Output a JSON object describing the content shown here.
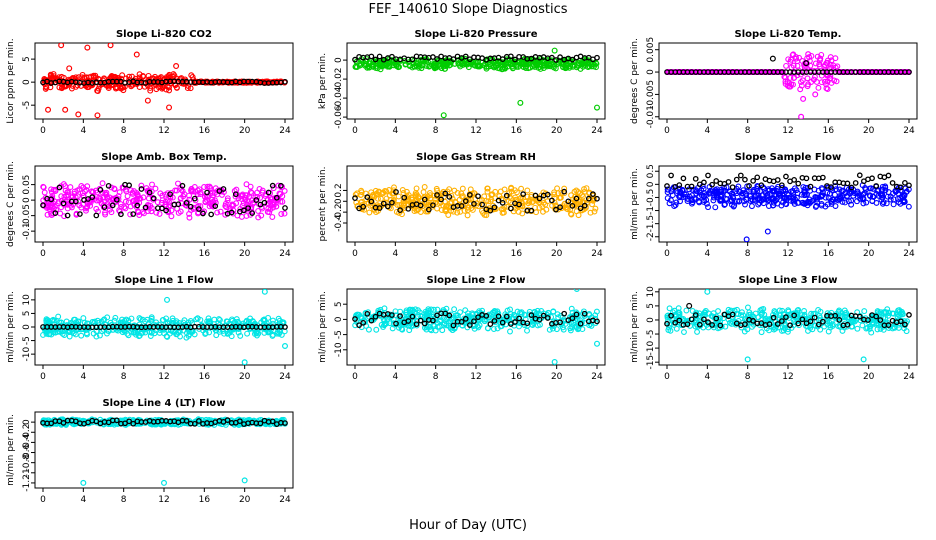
{
  "figure": {
    "title": "FEF_140610  Slope Diagnostics",
    "xlabel": "Hour of Day (UTC)"
  },
  "chart_data": [
    {
      "type": "scatter",
      "title": "Slope Li-820 CO2",
      "ylabel": "Licor ppm per min.",
      "xlim": [
        0,
        24
      ],
      "xticks": [
        0,
        4,
        8,
        12,
        16,
        20,
        24
      ],
      "ylim": [
        -8,
        8.5
      ],
      "yticks": [
        -5,
        0,
        5
      ],
      "series": [
        {
          "color": "#ff0000",
          "spread": 2.0,
          "outliers": [
            [
              0.5,
              -6
            ],
            [
              1.8,
              8
            ],
            [
              2.2,
              -6
            ],
            [
              2.6,
              3
            ],
            [
              3.5,
              -7
            ],
            [
              4.4,
              7.5
            ],
            [
              5.4,
              -7.2
            ],
            [
              6.7,
              8
            ],
            [
              9.3,
              6
            ],
            [
              10.4,
              -4
            ],
            [
              12.5,
              -5.5
            ],
            [
              13.2,
              3.5
            ]
          ],
          "t_range": [
            0,
            15
          ]
        },
        {
          "color": "#000000",
          "spread": 0.2
        }
      ]
    },
    {
      "type": "scatter",
      "title": "Slope Li-820 Pressure",
      "ylabel": "kPa per min.",
      "xlim": [
        0,
        24
      ],
      "xticks": [
        0,
        4,
        8,
        12,
        16,
        20,
        24
      ],
      "ylim": [
        -0.062,
        0.018
      ],
      "yticks": [
        -0.06,
        -0.04,
        -0.02,
        0.0
      ],
      "series": [
        {
          "color": "#00cc00",
          "spread": 0.006,
          "center": -0.004,
          "outliers": [
            [
              8.8,
              -0.058
            ],
            [
              16.4,
              -0.045
            ],
            [
              19.8,
              0.01
            ],
            [
              24.0,
              -0.05
            ]
          ]
        },
        {
          "color": "#000000",
          "spread": 0.002,
          "center": 0.002
        }
      ]
    },
    {
      "type": "scatter",
      "title": "Slope Li-820 Temp.",
      "ylabel": "degrees C per min.",
      "xlim": [
        0,
        24
      ],
      "xticks": [
        0,
        4,
        8,
        12,
        16,
        20,
        24
      ],
      "ylim": [
        -0.0105,
        0.0065
      ],
      "yticks": [
        -0.01,
        -0.005,
        0.0,
        0.005
      ],
      "series": [
        {
          "color": "#ff00ff",
          "spread": 0.0,
          "outliers": [
            [
              12.8,
              0.003
            ],
            [
              13.5,
              -0.006
            ],
            [
              14.0,
              0.004
            ],
            [
              14.7,
              -0.005
            ],
            [
              15.2,
              0.003
            ],
            [
              13.3,
              -0.01
            ]
          ],
          "burst": [
            11.5,
            17,
            0.004
          ]
        },
        {
          "color": "#000000",
          "spread": 0.0,
          "outliers": [
            [
              10.5,
              0.003
            ],
            [
              13.8,
              0.002
            ]
          ]
        }
      ]
    },
    {
      "type": "scatter",
      "title": "Slope Amb. Box Temp.",
      "ylabel": "degrees C per min.",
      "xlim": [
        0,
        24
      ],
      "xticks": [
        0,
        4,
        8,
        12,
        16,
        20,
        24
      ],
      "ylim": [
        -0.135,
        0.11
      ],
      "yticks": [
        -0.1,
        -0.05,
        0.0,
        0.05
      ],
      "series": [
        {
          "color": "#ff00ff",
          "spread": 0.06
        },
        {
          "color": "#000000",
          "spread": 0.05
        }
      ]
    },
    {
      "type": "scatter",
      "title": "Slope Gas Stream RH",
      "ylabel": "percent per min.",
      "xlim": [
        0,
        24
      ],
      "xticks": [
        0,
        4,
        8,
        12,
        16,
        20,
        24
      ],
      "ylim": [
        -0.75,
        0.65
      ],
      "yticks": [
        -0.4,
        -0.2,
        0.0,
        0.2
      ],
      "series": [
        {
          "color": "#ffb000",
          "spread": 0.28
        },
        {
          "color": "#000000",
          "spread": 0.18
        }
      ]
    },
    {
      "type": "scatter",
      "title": "Slope Sample Flow",
      "ylabel": "ml/min per min.",
      "xlim": [
        0,
        24
      ],
      "xticks": [
        0,
        4,
        8,
        12,
        16,
        20,
        24
      ],
      "ylim": [
        -2.2,
        0.7
      ],
      "yticks": [
        -2.0,
        -1.5,
        -1.0,
        -0.5,
        0.0,
        0.5
      ],
      "series": [
        {
          "color": "#0000ff",
          "spread": 0.45,
          "center": -0.45,
          "outliers": [
            [
              7.9,
              -2.1
            ],
            [
              10,
              -1.8
            ]
          ]
        },
        {
          "color": "#000000",
          "spread": 0.25,
          "center": 0.1
        }
      ]
    },
    {
      "type": "scatter",
      "title": "Slope Line 1 Flow",
      "ylabel": "ml/min per min.",
      "xlim": [
        0,
        24
      ],
      "xticks": [
        0,
        4,
        8,
        12,
        16,
        20,
        24
      ],
      "ylim": [
        -14,
        14
      ],
      "yticks": [
        -10,
        -5,
        0,
        5,
        10
      ],
      "series": [
        {
          "color": "#00e5e5",
          "spread": 4,
          "outliers": [
            [
              12.3,
              10
            ],
            [
              20.0,
              -13
            ],
            [
              22.0,
              13
            ],
            [
              24.0,
              -7
            ]
          ]
        },
        {
          "color": "#000000",
          "spread": 0.1
        }
      ]
    },
    {
      "type": "scatter",
      "title": "Slope Line 2 Flow",
      "ylabel": "ml/min per min.",
      "xlim": [
        0,
        24
      ],
      "xticks": [
        0,
        4,
        8,
        12,
        16,
        20,
        24
      ],
      "ylim": [
        -15,
        10
      ],
      "yticks": [
        -10,
        -5,
        0,
        5
      ],
      "series": [
        {
          "color": "#00e5e5",
          "spread": 4,
          "outliers": [
            [
              19.8,
              -14
            ],
            [
              22.0,
              10
            ],
            [
              24.0,
              -8
            ]
          ]
        },
        {
          "color": "#000000",
          "spread": 2
        }
      ]
    },
    {
      "type": "scatter",
      "title": "Slope Line 3 Flow",
      "ylabel": "ml/min per min.",
      "xlim": [
        0,
        24
      ],
      "xticks": [
        0,
        4,
        8,
        12,
        16,
        20,
        24
      ],
      "ylim": [
        -16,
        11
      ],
      "yticks": [
        -15,
        -10,
        -5,
        0,
        5,
        10
      ],
      "series": [
        {
          "color": "#00e5e5",
          "spread": 5,
          "outliers": [
            [
              4.0,
              10
            ],
            [
              8.0,
              -14
            ],
            [
              19.5,
              -14
            ]
          ]
        },
        {
          "color": "#000000",
          "spread": 2,
          "outliers": [
            [
              2.2,
              5
            ]
          ]
        }
      ]
    },
    {
      "type": "scatter",
      "title": "Slope Line 4 (LT) Flow",
      "ylabel": "ml/min per min.",
      "xlim": [
        0,
        24
      ],
      "xticks": [
        0,
        4,
        8,
        12,
        16,
        20,
        24
      ],
      "ylim": [
        -1.3,
        0.2
      ],
      "yticks": [
        -1.2,
        -1.0,
        -0.8,
        -0.6,
        -0.4,
        -0.2,
        0.0
      ],
      "series": [
        {
          "color": "#00e5e5",
          "spread": 0.06,
          "outliers": [
            [
              4.0,
              -1.2
            ],
            [
              12.0,
              -1.2
            ],
            [
              20.0,
              -1.15
            ]
          ]
        },
        {
          "color": "#000000",
          "spread": 0.04
        }
      ]
    }
  ]
}
